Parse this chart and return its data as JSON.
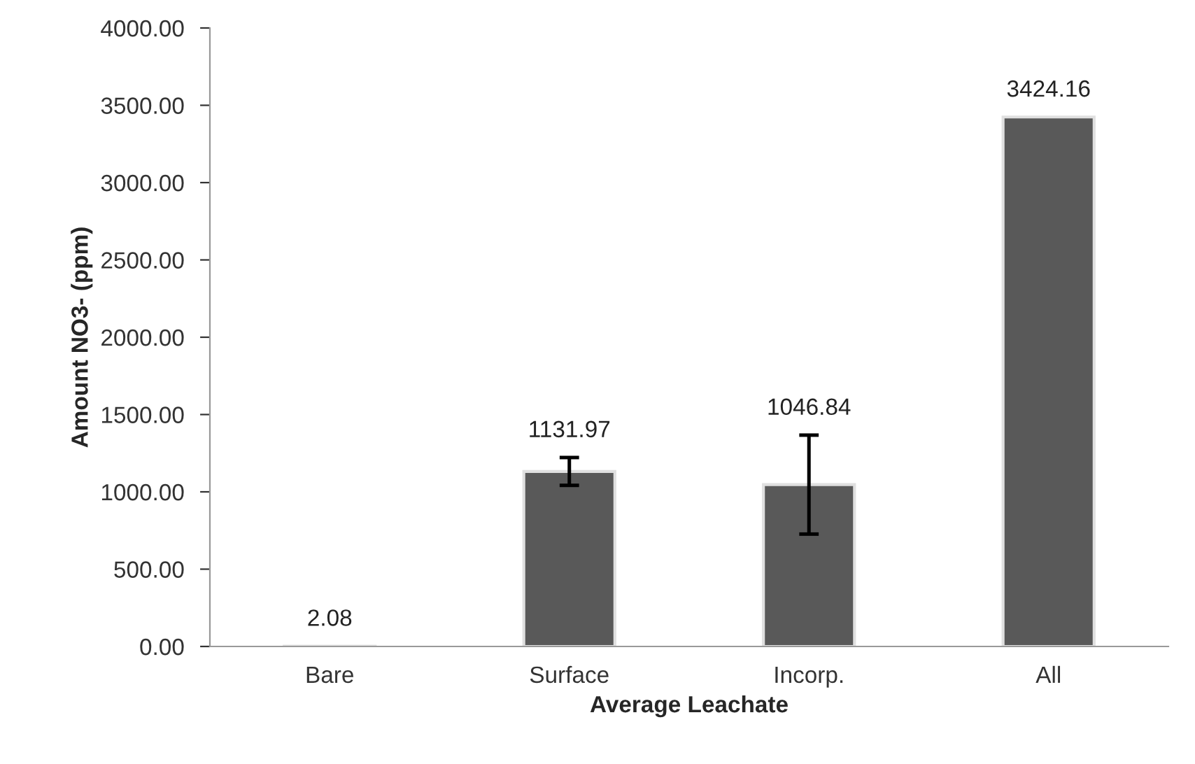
{
  "chart_data": {
    "type": "bar",
    "xlabel": "Average Leachate",
    "ylabel": "Amount NO3- (ppm)",
    "categories": [
      "Bare",
      "Surface",
      "Incorp.",
      "All"
    ],
    "values": [
      2.08,
      1131.97,
      1046.84,
      3424.16
    ],
    "errors": [
      null,
      90,
      320,
      null
    ],
    "color": "#595959",
    "data_labels": true,
    "ylim": [
      0,
      4000
    ],
    "yticks": [
      {
        "value": 0,
        "label": "0.00"
      },
      {
        "value": 500,
        "label": "500.00"
      },
      {
        "value": 1000,
        "label": "1000.00"
      },
      {
        "value": 1500,
        "label": "1500.00"
      },
      {
        "value": 2000,
        "label": "2000.00"
      },
      {
        "value": 2500,
        "label": "2500.00"
      },
      {
        "value": 3000,
        "label": "3000.00"
      },
      {
        "value": 3500,
        "label": "3500.00"
      },
      {
        "value": 4000,
        "label": "4000.00"
      }
    ],
    "grid": false,
    "legend": false
  }
}
